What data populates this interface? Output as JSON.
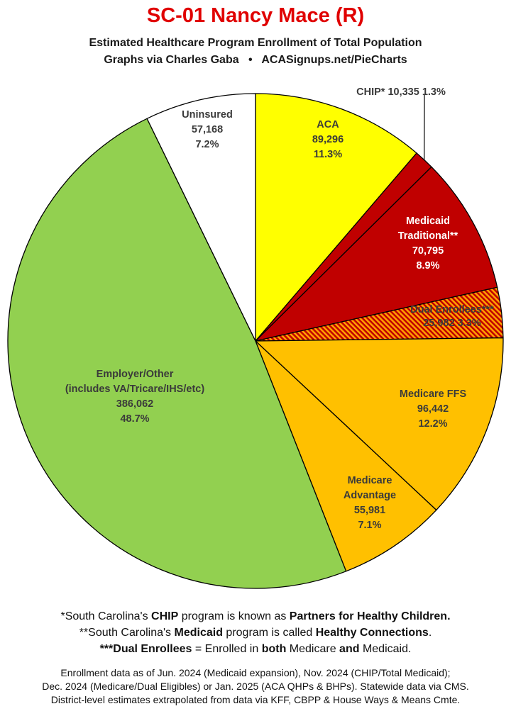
{
  "header": {
    "title": "SC-01 Nancy Mace (R)",
    "subtitle_line1": "Estimated Healthcare Program Enrollment of Total Population",
    "subtitle_credit": "Graphs via Charles Gaba",
    "subtitle_separator": "•",
    "subtitle_site": "ACASignups.net/PieCharts"
  },
  "chart_data": {
    "type": "pie",
    "start": "12 o'clock, clockwise",
    "slices": [
      {
        "label": "ACA",
        "value": 89296,
        "value_text": "89,296",
        "percent": "11.3%",
        "color": "#ffff00",
        "text_color": "#3a3a3a"
      },
      {
        "label": "CHIP*",
        "value": 10335,
        "value_text": "10,335",
        "percent": "1.3%",
        "color": "#c00000",
        "text_color": "#3a3a3a"
      },
      {
        "label": "Medicaid Traditional**",
        "label_lines": [
          "Medicaid",
          "Traditional**"
        ],
        "value": 70795,
        "value_text": "70,795",
        "percent": "8.9%",
        "color": "#c00000",
        "text_color": "#ffffff"
      },
      {
        "label": "Dual Enrollees***",
        "value": 25982,
        "value_text": "25,982",
        "percent": "3.3%",
        "color": "#c00000",
        "hatch": "#ffa000",
        "text_color": "#3a3a3a"
      },
      {
        "label": "Medicare FFS",
        "value": 96442,
        "value_text": "96,442",
        "percent": "12.2%",
        "color": "#ffc000",
        "text_color": "#3a3a3a"
      },
      {
        "label": "Medicare Advantage",
        "label_lines": [
          "Medicare",
          "Advantage"
        ],
        "value": 55981,
        "value_text": "55,981",
        "percent": "7.1%",
        "color": "#ffc000",
        "text_color": "#3a3a3a"
      },
      {
        "label": "Employer/Other (includes VA/Tricare/IHS/etc)",
        "label_lines": [
          "Employer/Other",
          "(includes VA/Tricare/IHS/etc)"
        ],
        "value": 386062,
        "value_text": "386,062",
        "percent": "48.7%",
        "color": "#92d050",
        "text_color": "#3a3a3a"
      },
      {
        "label": "Uninsured",
        "value": 57168,
        "value_text": "57,168",
        "percent": "7.2%",
        "color": "#ffffff",
        "text_color": "#3a3a3a"
      }
    ]
  },
  "notes": {
    "line1": {
      "a": "*South Carolina's ",
      "b": "CHIP",
      "c": " program is known as ",
      "d": "Partners for Healthy Children."
    },
    "line2": {
      "a": "**South Carolina's ",
      "b": "Medicaid",
      "c": " program is called ",
      "d": "Healthy Connections",
      "e": "."
    },
    "line3": {
      "a": "***Dual Enrollees",
      "b": " = Enrolled in ",
      "c": "both",
      "d": " Medicare ",
      "e": "and",
      "f": " Medicaid."
    }
  },
  "source": {
    "line1": "Enrollment data as of Jun. 2024 (Medicaid expansion), Nov. 2024 (CHIP/Total Medicaid);",
    "line2": "Dec. 2024 (Medicare/Dual Eligibles) or Jan. 2025 (ACA QHPs & BHPs). Statewide data via CMS.",
    "line3": "District-level estimates extrapolated from data via KFF, CBPP & House Ways & Means Cmte."
  }
}
